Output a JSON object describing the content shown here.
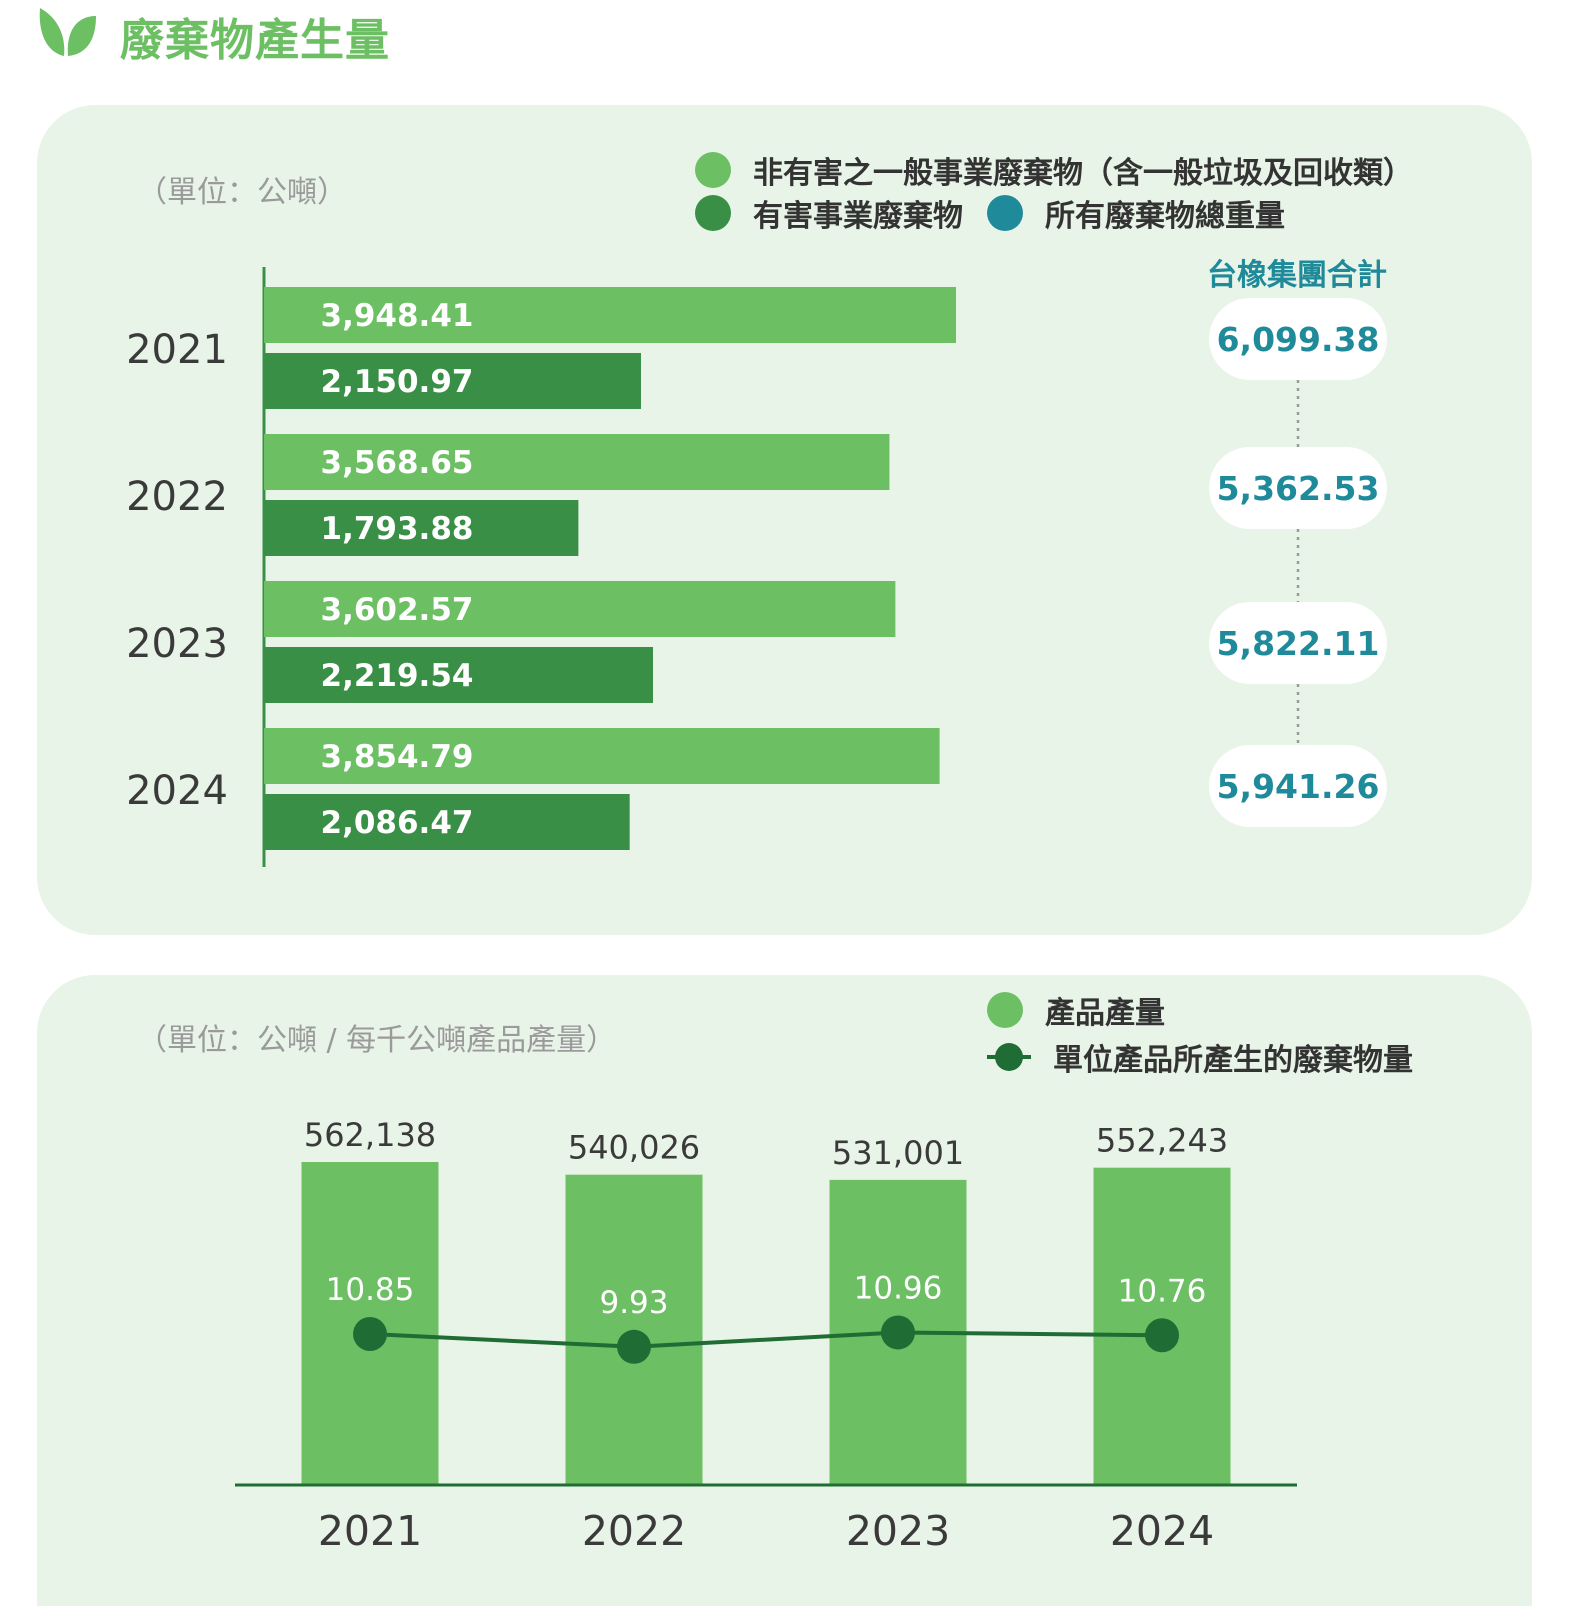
{
  "title": "廢棄物產生量",
  "colors": {
    "title_green": "#6cbf63",
    "light_green": "#6cbf63",
    "dark_green": "#3a8f47",
    "teal": "#1f8a9a",
    "line_green": "#1f6d35",
    "panel_bg": "#e9f4e8"
  },
  "icons": {
    "title_icon": "leaf-icon"
  },
  "panel1": {
    "unit": "（單位：公噸）",
    "legend": {
      "non_hazardous": "非有害之一般事業廢棄物（含一般垃圾及回收類）",
      "hazardous": "有害事業廢棄物",
      "total": "所有廢棄物總重量"
    },
    "total_group_title": "台橡集團合計",
    "totals": [
      "6,099.38",
      "5,362.53",
      "5,822.11",
      "5,941.26"
    ]
  },
  "panel2": {
    "unit": "（單位：公噸 / 每千公噸產品產量）",
    "legend": {
      "production": "產品產量",
      "per_unit": "單位產品所產生的廢棄物量"
    }
  },
  "chart_data": [
    {
      "type": "bar",
      "orientation": "horizontal",
      "categories": [
        "2021",
        "2022",
        "2023",
        "2024"
      ],
      "series": [
        {
          "name": "非有害之一般事業廢棄物（含一般垃圾及回收類）",
          "values": [
            3948.41,
            3568.65,
            3602.57,
            3854.79
          ],
          "labels": [
            "3,948.41",
            "3,568.65",
            "3,602.57",
            "3,854.79"
          ]
        },
        {
          "name": "有害事業廢棄物",
          "values": [
            2150.97,
            1793.88,
            2219.54,
            2086.47
          ],
          "labels": [
            "2,150.97",
            "1,793.88",
            "2,219.54",
            "2,086.47"
          ]
        }
      ],
      "totals": {
        "name": "所有廢棄物總重量",
        "values": [
          6099.38,
          5362.53,
          5822.11,
          5941.26
        ]
      },
      "xlim": [
        0,
        4400
      ]
    },
    {
      "type": "bar",
      "categories": [
        "2021",
        "2022",
        "2023",
        "2024"
      ],
      "series": [
        {
          "name": "產品產量",
          "type": "bar",
          "values": [
            562138,
            540026,
            531001,
            552243
          ],
          "labels": [
            "562,138",
            "540,026",
            "531,001",
            "552,243"
          ]
        },
        {
          "name": "單位產品所產生的廢棄物量",
          "type": "line",
          "values": [
            10.85,
            9.93,
            10.96,
            10.76
          ],
          "labels": [
            "10.85",
            "9.93",
            "10.96",
            "10.76"
          ]
        }
      ],
      "ylim_bar": [
        0,
        600000
      ],
      "ylim_line": [
        0,
        12
      ]
    }
  ]
}
